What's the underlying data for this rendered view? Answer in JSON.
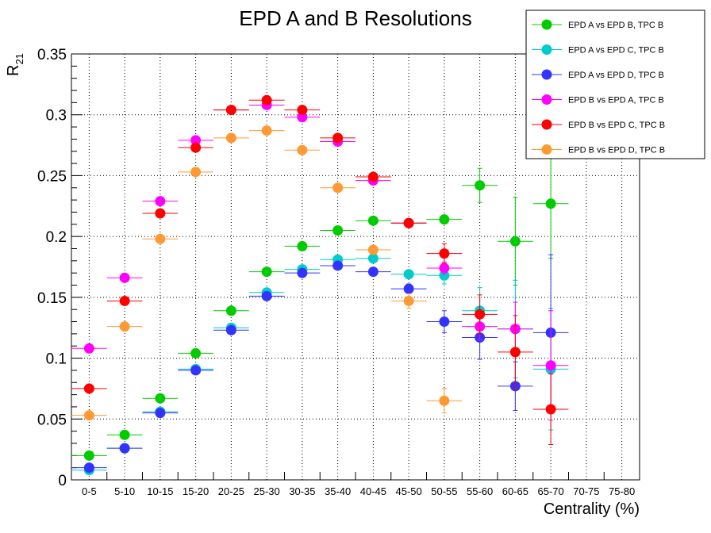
{
  "chart_data": {
    "type": "scatter",
    "title": "EPD A and B Resolutions",
    "xlabel": "Centrality (%)",
    "ylabel_main": "R",
    "ylabel_sub": "21",
    "categories": [
      "0-5",
      "5-10",
      "10-15",
      "15-20",
      "20-25",
      "25-30",
      "30-35",
      "35-40",
      "40-45",
      "45-50",
      "50-55",
      "55-60",
      "60-65",
      "65-70",
      "70-75",
      "75-80"
    ],
    "ylim": [
      0,
      0.35
    ],
    "yticks": [
      0,
      0.05,
      0.1,
      0.15,
      0.2,
      0.25,
      0.3,
      0.35
    ],
    "ytick_labels": [
      "0",
      "0.05",
      "0.1",
      "0.15",
      "0.2",
      "0.25",
      "0.3",
      "0.35"
    ],
    "grid": true,
    "legend_position": "top-right",
    "series": [
      {
        "name": "EPD A vs EPD B, TPC B",
        "color": "#00cc00",
        "values": [
          0.02,
          0.037,
          0.067,
          0.104,
          0.139,
          0.171,
          0.192,
          0.205,
          0.213,
          0.211,
          0.214,
          0.242,
          0.196,
          0.227,
          null,
          null
        ],
        "errors": [
          0.001,
          0.001,
          0.001,
          0.001,
          0.001,
          0.001,
          0.001,
          0.001,
          0.002,
          0.002,
          0.003,
          0.014,
          0.036,
          0.045,
          null,
          null
        ]
      },
      {
        "name": "EPD A vs EPD C, TPC B",
        "color": "#00cccc",
        "values": [
          0.008,
          0.026,
          0.056,
          0.091,
          0.125,
          0.154,
          0.173,
          0.181,
          0.182,
          0.169,
          0.168,
          0.139,
          0.124,
          0.091,
          null,
          null
        ],
        "errors": [
          0.001,
          0.001,
          0.001,
          0.001,
          0.001,
          0.001,
          0.001,
          0.001,
          0.002,
          0.002,
          0.007,
          0.019,
          0.04,
          0.05,
          null,
          null
        ]
      },
      {
        "name": "EPD A vs EPD D, TPC B",
        "color": "#3333ff",
        "values": [
          0.01,
          0.026,
          0.055,
          0.09,
          0.123,
          0.151,
          0.17,
          0.176,
          0.171,
          0.157,
          0.13,
          0.117,
          0.077,
          0.121,
          null,
          null
        ],
        "errors": [
          0.001,
          0.001,
          0.001,
          0.001,
          0.001,
          0.001,
          0.001,
          0.001,
          0.002,
          0.004,
          0.009,
          0.018,
          0.02,
          0.064,
          null,
          null
        ]
      },
      {
        "name": "EPD B vs EPD A, TPC B",
        "color": "#ff00ff",
        "values": [
          0.108,
          0.166,
          0.229,
          0.279,
          0.304,
          0.308,
          0.298,
          0.278,
          0.246,
          0.211,
          0.174,
          0.126,
          0.124,
          0.094,
          null,
          null
        ],
        "errors": [
          0.003,
          0.001,
          0.001,
          0.001,
          0.001,
          0.001,
          0.001,
          0.001,
          0.001,
          0.002,
          0.005,
          0.011,
          0.022,
          0.045,
          null,
          null
        ]
      },
      {
        "name": "EPD B vs EPD C, TPC B",
        "color": "#ff0000",
        "values": [
          0.075,
          0.147,
          0.219,
          0.273,
          0.304,
          0.312,
          0.304,
          0.281,
          0.249,
          0.211,
          0.186,
          0.136,
          0.105,
          0.058,
          null,
          null
        ],
        "errors": [
          0.002,
          0.001,
          0.001,
          0.001,
          0.001,
          0.001,
          0.001,
          0.001,
          0.001,
          0.002,
          0.008,
          0.016,
          0.03,
          0.029,
          null,
          null
        ]
      },
      {
        "name": "EPD B vs EPD D, TPC B",
        "color": "#ff9933",
        "values": [
          0.053,
          0.126,
          0.198,
          0.253,
          0.281,
          0.287,
          0.271,
          0.24,
          0.189,
          0.147,
          0.065,
          null,
          null,
          null,
          null,
          null
        ],
        "errors": [
          0.001,
          0.001,
          0.001,
          0.001,
          0.001,
          0.001,
          0.001,
          0.001,
          0.002,
          0.006,
          0.01,
          null,
          null,
          null,
          null,
          null
        ]
      }
    ]
  }
}
